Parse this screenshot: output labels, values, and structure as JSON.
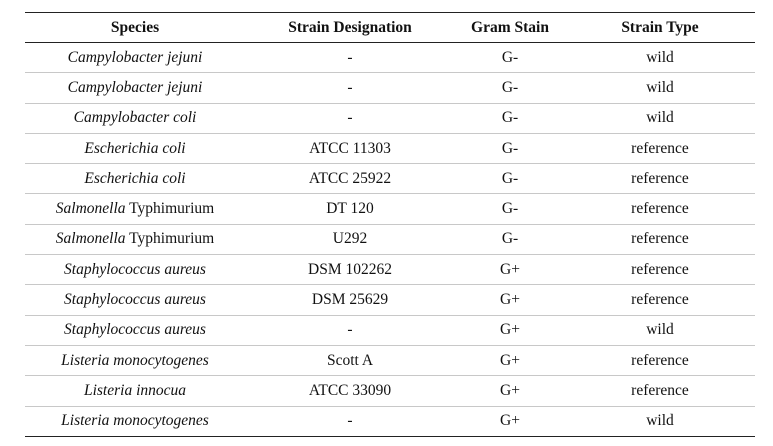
{
  "table": {
    "header": [
      "Species",
      "Strain Designation",
      "Gram Stain",
      "Strain Type"
    ],
    "rows": [
      [
        {
          "italic": "Campylobacter jejuni"
        },
        "-",
        "G-",
        "wild"
      ],
      [
        {
          "italic": "Campylobacter jejuni"
        },
        "-",
        "G-",
        "wild"
      ],
      [
        {
          "italic": "Campylobacter coli"
        },
        "-",
        "G-",
        "wild"
      ],
      [
        {
          "italic": "Escherichia coli"
        },
        "ATCC 11303",
        "G-",
        "reference"
      ],
      [
        {
          "italic": "Escherichia coli"
        },
        "ATCC 25922",
        "G-",
        "reference"
      ],
      [
        {
          "italic": "Salmonella",
          "roman": "Typhimurium"
        },
        "DT 120",
        "G-",
        "reference"
      ],
      [
        {
          "italic": "Salmonella",
          "roman": "Typhimurium"
        },
        "U292",
        "G-",
        "reference"
      ],
      [
        {
          "italic": "Staphylococcus aureus"
        },
        "DSM 102262",
        "G+",
        "reference"
      ],
      [
        {
          "italic": "Staphylococcus aureus"
        },
        "DSM 25629",
        "G+",
        "reference"
      ],
      [
        {
          "italic": "Staphylococcus aureus"
        },
        "-",
        "G+",
        "wild"
      ],
      [
        {
          "italic": "Listeria monocytogenes"
        },
        "Scott A",
        "G+",
        "reference"
      ],
      [
        {
          "italic": "Listeria innocua"
        },
        "ATCC 33090",
        "G+",
        "reference"
      ],
      [
        {
          "italic": "Listeria monocytogenes"
        },
        "-",
        "G+",
        "wild"
      ]
    ]
  }
}
